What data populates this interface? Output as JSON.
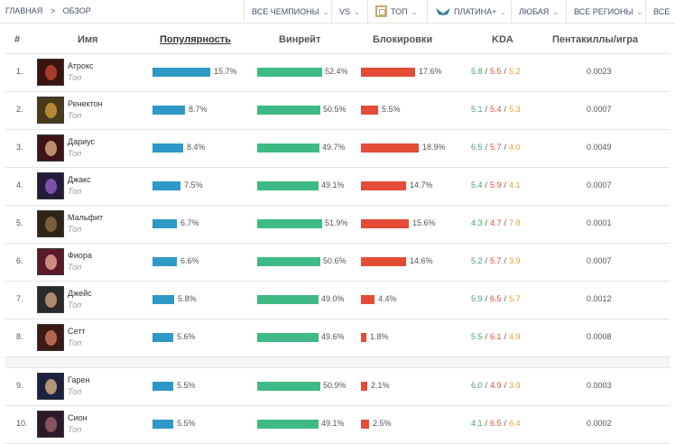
{
  "breadcrumb": {
    "home": "ГЛАВНАЯ",
    "separator": ">",
    "current": "ОБЗОР"
  },
  "filters": {
    "champions": "ВСЕ ЧЕМПИОНЫ",
    "vs": "VS",
    "position": "ТОП",
    "rank": "ПЛАТИНА+",
    "queue": "ЛЮБАЯ",
    "regions": "ВСЕ РЕГИОНЫ",
    "more": "ВСЕ"
  },
  "colors": {
    "popularity": "#2e99c6",
    "winrate": "#3fba86",
    "banrate": "#e34c37",
    "kills": "#4aa06b",
    "deaths": "#e04b3a",
    "assists": "#e8a02c"
  },
  "table": {
    "headers": {
      "rank": "#",
      "name": "Имя",
      "popularity": "Популярность",
      "winrate": "Винрейт",
      "banrate": "Блокировки",
      "kda": "KDA",
      "pentas": "Пентакиллы/игра"
    },
    "rows": [
      {
        "rank": "1.",
        "name": "Атрокс",
        "role": "Топ",
        "popularity": "15.7%",
        "popularity_value": 15.7,
        "winrate": "52.4%",
        "winrate_value": 52.4,
        "banrate": "17.6%",
        "banrate_value": 17.6,
        "kda_k": "5.8",
        "kda_d": "5.5",
        "kda_a": "5.2",
        "pentas": "0.0023",
        "avatar_bg": "#3a1410",
        "avatar_fg": "#b8432f"
      },
      {
        "rank": "2.",
        "name": "Ренектон",
        "role": "Топ",
        "popularity": "8.7%",
        "popularity_value": 8.7,
        "winrate": "50.5%",
        "winrate_value": 50.5,
        "banrate": "5.5%",
        "banrate_value": 5.5,
        "kda_k": "5.1",
        "kda_d": "5.4",
        "kda_a": "5.3",
        "pentas": "0.0007",
        "avatar_bg": "#4a3a1c",
        "avatar_fg": "#c8963a"
      },
      {
        "rank": "3.",
        "name": "Дариус",
        "role": "Топ",
        "popularity": "8.4%",
        "popularity_value": 8.4,
        "winrate": "49.7%",
        "winrate_value": 49.7,
        "banrate": "18.9%",
        "banrate_value": 18.9,
        "kda_k": "6.5",
        "kda_d": "5.7",
        "kda_a": "4.0",
        "pentas": "0.0049",
        "avatar_bg": "#3c1418",
        "avatar_fg": "#d2a27a"
      },
      {
        "rank": "4.",
        "name": "Джакс",
        "role": "Топ",
        "popularity": "7.5%",
        "popularity_value": 7.5,
        "winrate": "49.1%",
        "winrate_value": 49.1,
        "banrate": "14.7%",
        "banrate_value": 14.7,
        "kda_k": "5.4",
        "kda_d": "5.9",
        "kda_a": "4.1",
        "pentas": "0.0007",
        "avatar_bg": "#241a3a",
        "avatar_fg": "#8a5cc0"
      },
      {
        "rank": "5.",
        "name": "Мальфит",
        "role": "Топ",
        "popularity": "6.7%",
        "popularity_value": 6.7,
        "winrate": "51.9%",
        "winrate_value": 51.9,
        "banrate": "15.6%",
        "banrate_value": 15.6,
        "kda_k": "4.3",
        "kda_d": "4.7",
        "kda_a": "7.8",
        "pentas": "0.0001",
        "avatar_bg": "#2e2418",
        "avatar_fg": "#8a6a40"
      },
      {
        "rank": "6.",
        "name": "Фиора",
        "role": "Топ",
        "popularity": "6.6%",
        "popularity_value": 6.6,
        "winrate": "50.6%",
        "winrate_value": 50.6,
        "banrate": "14.6%",
        "banrate_value": 14.6,
        "kda_k": "5.2",
        "kda_d": "5.7",
        "kda_a": "3.9",
        "pentas": "0.0007",
        "avatar_bg": "#5a1a2a",
        "avatar_fg": "#e2a090"
      },
      {
        "rank": "7.",
        "name": "Джейс",
        "role": "Топ",
        "popularity": "5.8%",
        "popularity_value": 5.8,
        "winrate": "49.0%",
        "winrate_value": 49.0,
        "banrate": "4.4%",
        "banrate_value": 4.4,
        "kda_k": "5.9",
        "kda_d": "6.5",
        "kda_a": "5.7",
        "pentas": "0.0012",
        "avatar_bg": "#2a2a2a",
        "avatar_fg": "#c49a7a"
      },
      {
        "rank": "8.",
        "name": "Сетт",
        "role": "Топ",
        "popularity": "5.6%",
        "popularity_value": 5.6,
        "winrate": "49.6%",
        "winrate_value": 49.6,
        "banrate": "1.8%",
        "banrate_value": 1.8,
        "kda_k": "5.5",
        "kda_d": "6.1",
        "kda_a": "4.9",
        "pentas": "0.0008",
        "avatar_bg": "#3a1a14",
        "avatar_fg": "#c8745a"
      },
      {
        "rank": "9.",
        "name": "Гарен",
        "role": "Топ",
        "popularity": "5.5%",
        "popularity_value": 5.5,
        "winrate": "50.9%",
        "winrate_value": 50.9,
        "banrate": "2.1%",
        "banrate_value": 2.1,
        "kda_k": "6.0",
        "kda_d": "4.9",
        "kda_a": "3.9",
        "pentas": "0.0003",
        "avatar_bg": "#1a2240",
        "avatar_fg": "#d0a880"
      },
      {
        "rank": "10.",
        "name": "Сион",
        "role": "Топ",
        "popularity": "5.5%",
        "popularity_value": 5.5,
        "winrate": "49.1%",
        "winrate_value": 49.1,
        "banrate": "2.5%",
        "banrate_value": 2.5,
        "kda_k": "4.1",
        "kda_d": "6.5",
        "kda_a": "6.4",
        "pentas": "0.0002",
        "avatar_bg": "#2a1a2a",
        "avatar_fg": "#9a5a6a"
      }
    ]
  }
}
